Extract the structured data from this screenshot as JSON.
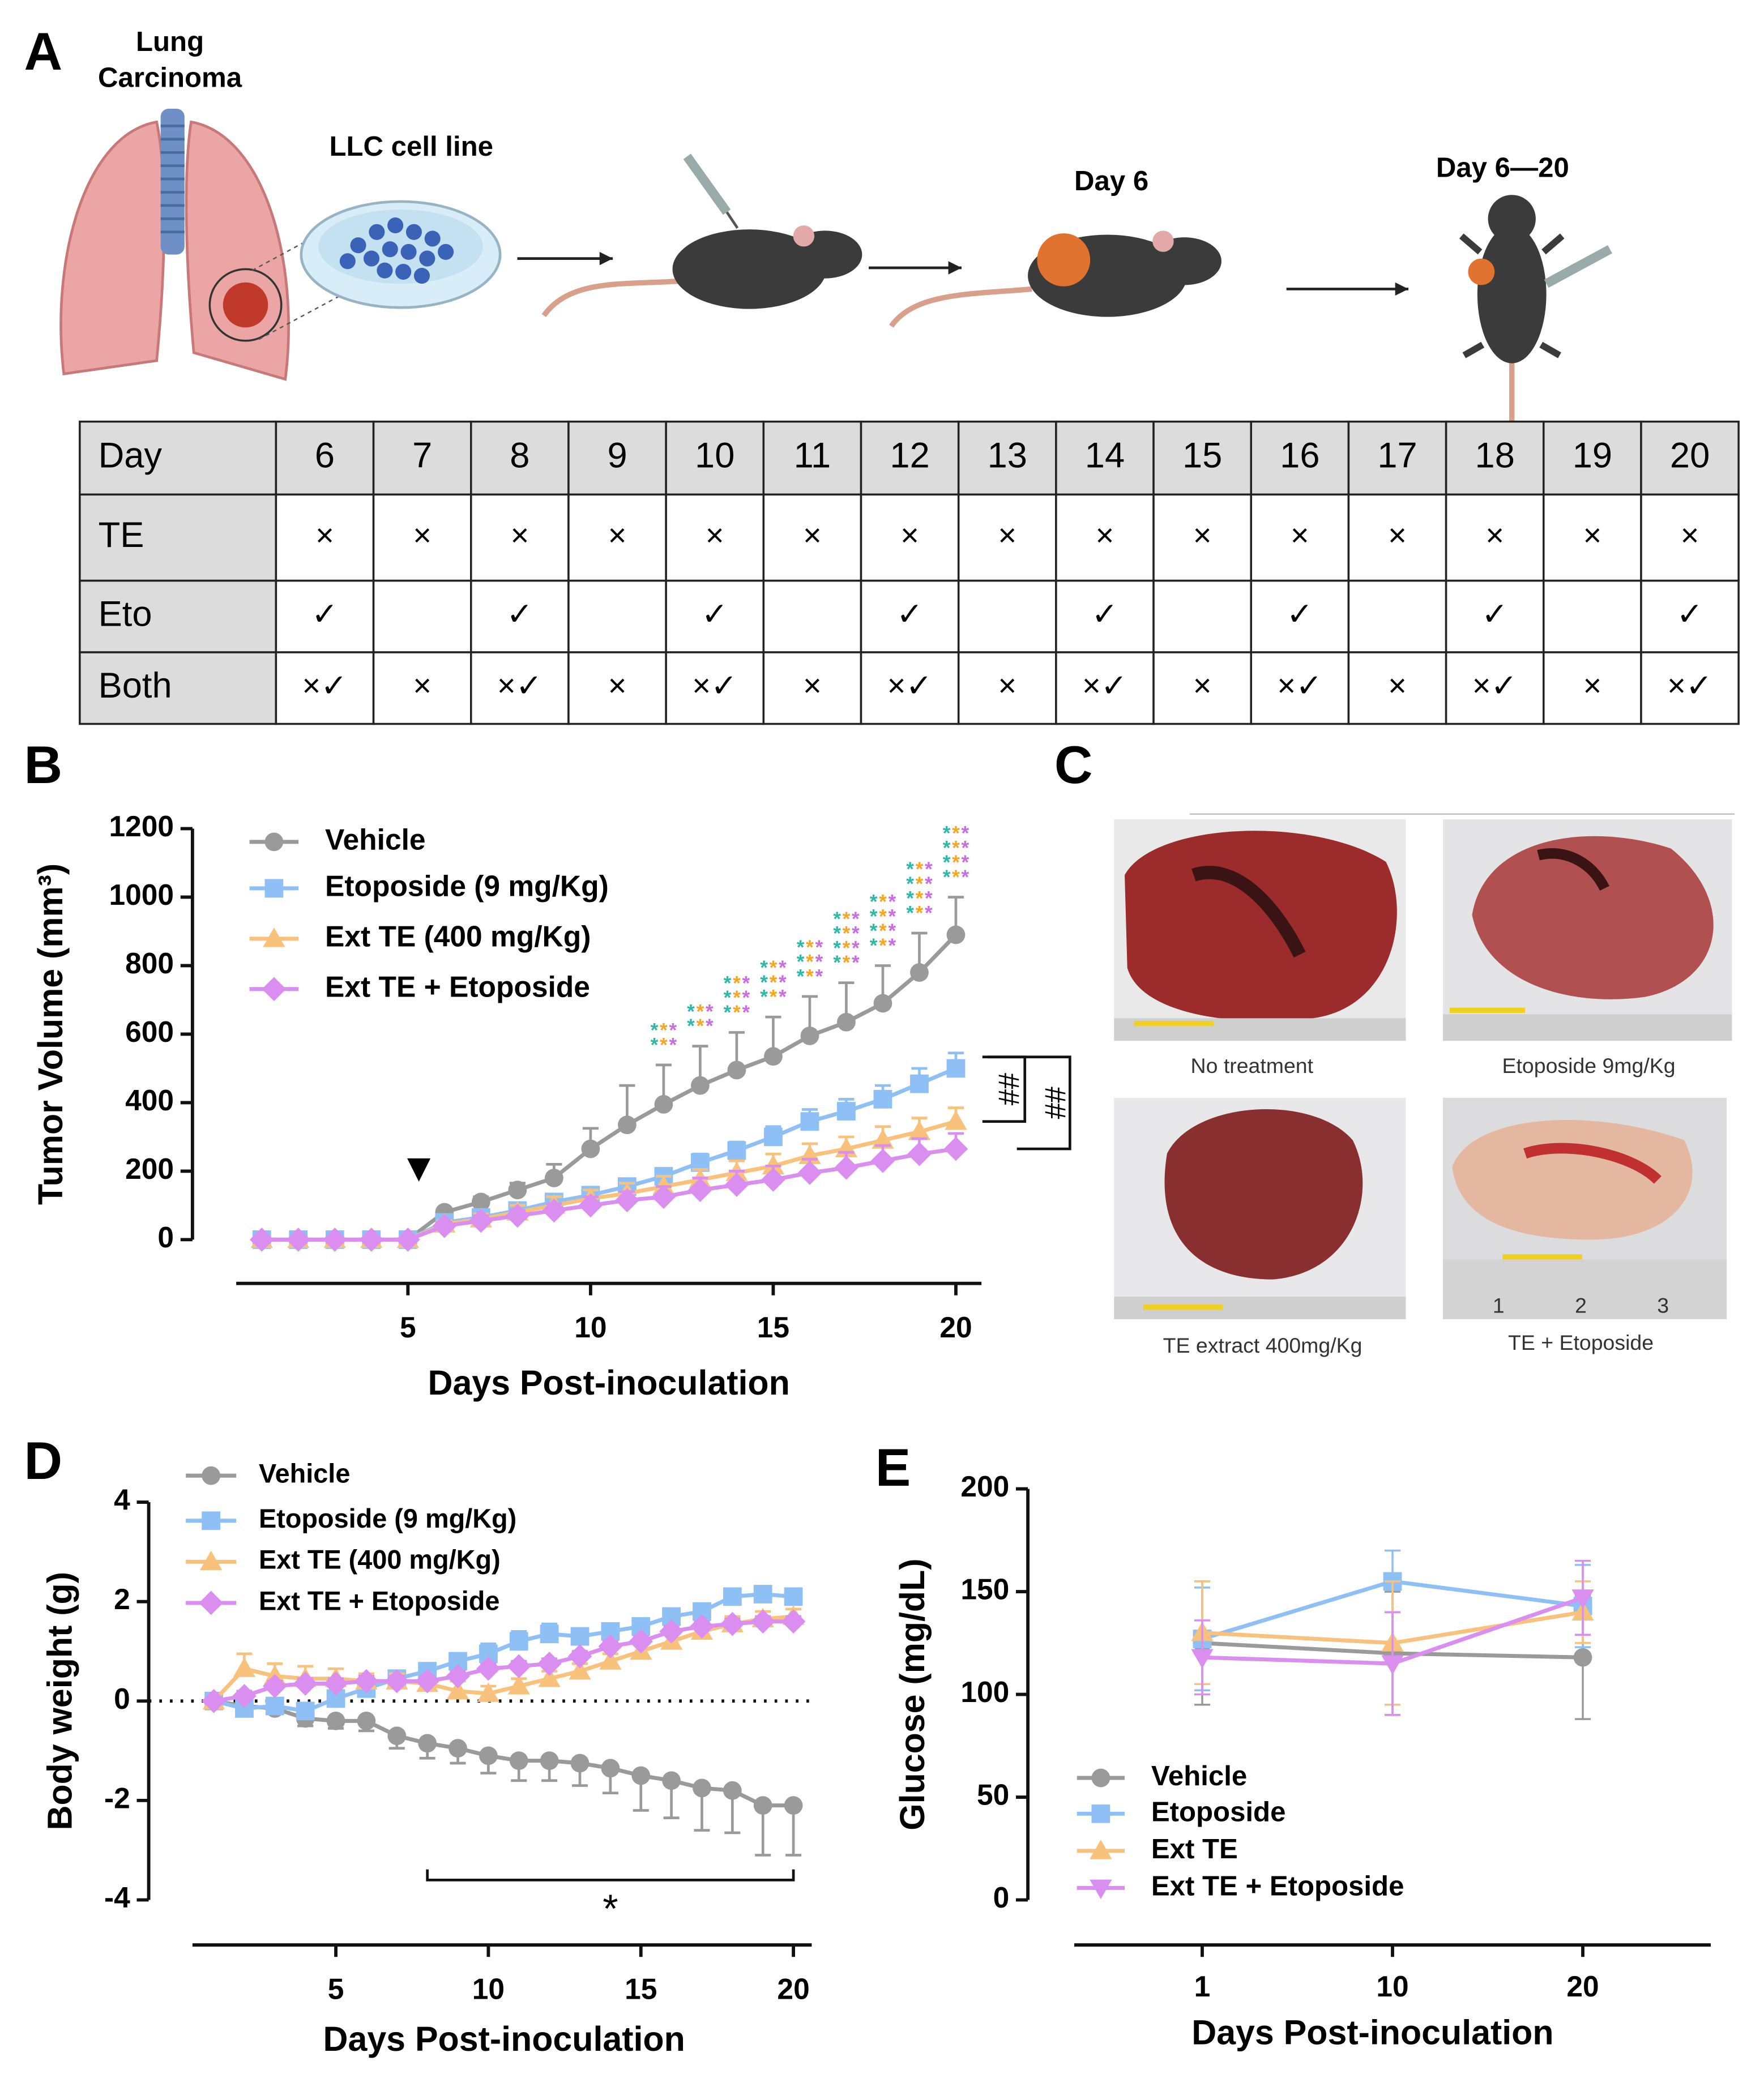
{
  "panel_a": {
    "label": "A",
    "lung_label": [
      "Lung",
      "Carcinoma"
    ],
    "cell_label": "LLC cell line",
    "day6": "Day 6",
    "day_range": "Day 6—20",
    "table": {
      "rows": [
        [
          "Day",
          "6",
          "7",
          "8",
          "9",
          "10",
          "11",
          "12",
          "13",
          "14",
          "15",
          "16",
          "17",
          "18",
          "19",
          "20"
        ],
        [
          "TE",
          "×",
          "×",
          "×",
          "×",
          "×",
          "×",
          "×",
          "×",
          "×",
          "×",
          "×",
          "×",
          "×",
          "×",
          "×"
        ],
        [
          "Eto",
          "✓",
          null,
          "✓",
          null,
          "✓",
          null,
          "✓",
          null,
          "✓",
          null,
          "✓",
          null,
          "✓",
          null,
          "✓"
        ],
        [
          "Both",
          "×✓",
          "×",
          "×✓",
          "×",
          "×✓",
          "×",
          "×✓",
          "×",
          "×✓",
          "×",
          "×✓",
          "×",
          "×✓",
          "×",
          "×✓"
        ]
      ]
    }
  },
  "panel_c": {
    "label": "C",
    "captions": [
      "No treatment",
      "Etoposide 9mg/Kg",
      "TE extract 400mg/Kg",
      "TE + Etoposide"
    ],
    "ruler_labels": [
      "1",
      "2",
      "3"
    ]
  },
  "chart_data": [
    {
      "panel": "B",
      "type": "line",
      "x_label": "Days Post-inoculation",
      "y_label": "Tumor Volume (mm³)",
      "x": [
        1,
        2,
        3,
        4,
        5,
        6,
        7,
        8,
        9,
        10,
        11,
        12,
        13,
        14,
        15,
        16,
        17,
        18,
        19,
        20
      ],
      "series": [
        {
          "name": "Vehicle",
          "color": "#9a9a9a",
          "marker": "circle",
          "error_direction": "up",
          "values": [
            0,
            0,
            0,
            0,
            0,
            80,
            110,
            145,
            180,
            265,
            335,
            395,
            450,
            495,
            535,
            595,
            635,
            690,
            780,
            890
          ],
          "errors": [
            0,
            0,
            0,
            0,
            0,
            10,
            15,
            20,
            40,
            60,
            115,
            115,
            115,
            110,
            115,
            115,
            115,
            110,
            115,
            110
          ]
        },
        {
          "name": "Etoposide (9 mg/Kg)",
          "color": "#8ec0f5",
          "marker": "square",
          "error_direction": "up",
          "values": [
            0,
            0,
            0,
            0,
            0,
            50,
            65,
            85,
            110,
            130,
            155,
            185,
            225,
            260,
            300,
            345,
            375,
            410,
            455,
            500
          ],
          "errors": [
            0,
            0,
            0,
            0,
            0,
            10,
            10,
            15,
            15,
            15,
            20,
            20,
            25,
            25,
            30,
            35,
            35,
            40,
            45,
            45
          ]
        },
        {
          "name": "Ext TE (400 mg/Kg)",
          "color": "#f8c27c",
          "marker": "triangle",
          "error_direction": "up",
          "values": [
            0,
            0,
            0,
            0,
            0,
            45,
            60,
            80,
            100,
            120,
            135,
            155,
            175,
            195,
            215,
            245,
            265,
            290,
            315,
            345
          ],
          "errors": [
            0,
            0,
            0,
            0,
            0,
            10,
            15,
            20,
            25,
            25,
            30,
            30,
            30,
            35,
            35,
            35,
            35,
            40,
            40,
            40
          ]
        },
        {
          "name": "Ext TE + Etoposide",
          "color": "#d98ef0",
          "marker": "diamond",
          "error_direction": "up",
          "values": [
            0,
            0,
            0,
            0,
            0,
            40,
            55,
            70,
            85,
            100,
            115,
            125,
            145,
            160,
            175,
            195,
            210,
            230,
            250,
            265
          ],
          "errors": [
            0,
            0,
            0,
            0,
            0,
            10,
            15,
            15,
            20,
            25,
            25,
            30,
            35,
            40,
            40,
            40,
            45,
            45,
            45,
            45
          ]
        }
      ],
      "xlim": [
        0.3,
        20.7
      ],
      "xticks": [
        5,
        10,
        15,
        20
      ],
      "ylim": [
        0,
        1200
      ],
      "yticks": [
        0,
        200,
        400,
        600,
        800,
        1000,
        1200
      ],
      "arrow": "▼",
      "arrow_day": 5.3,
      "sig_symbol": "*",
      "sig_colors": [
        "#2fb7a8",
        "#f5a623",
        "#c86ee0"
      ],
      "sig_days": [
        12,
        13,
        14,
        15,
        16,
        17,
        18,
        19,
        20
      ],
      "sig_rows": [
        2,
        2,
        3,
        3,
        3,
        4,
        4,
        4,
        4
      ],
      "compare_label": "##"
    },
    {
      "panel": "D",
      "type": "line",
      "x_label": "Days Post-inoculation",
      "y_label": "Body weight (g)",
      "x": [
        1,
        2,
        3,
        4,
        5,
        6,
        7,
        8,
        9,
        10,
        11,
        12,
        13,
        14,
        15,
        16,
        17,
        18,
        19,
        20
      ],
      "series": [
        {
          "name": "Vehicle",
          "color": "#9a9a9a",
          "marker": "circle",
          "error_direction": "down",
          "values": [
            0,
            -0.1,
            -0.15,
            -0.35,
            -0.4,
            -0.4,
            -0.7,
            -0.85,
            -0.95,
            -1.1,
            -1.2,
            -1.2,
            -1.25,
            -1.35,
            -1.5,
            -1.6,
            -1.75,
            -1.8,
            -2.1,
            -2.1
          ],
          "errors": [
            0,
            0.1,
            0.1,
            0.15,
            0.15,
            0.2,
            0.25,
            0.3,
            0.3,
            0.35,
            0.4,
            0.4,
            0.45,
            0.5,
            0.7,
            0.75,
            0.85,
            0.85,
            1.0,
            1.0
          ]
        },
        {
          "name": "Etoposide (9 mg/Kg)",
          "color": "#8ec0f5",
          "marker": "square",
          "error_direction": "up",
          "values": [
            0,
            -0.15,
            -0.1,
            -0.2,
            0.05,
            0.25,
            0.45,
            0.6,
            0.8,
            0.95,
            1.2,
            1.35,
            1.3,
            1.4,
            1.5,
            1.7,
            1.8,
            2.1,
            2.15,
            2.1
          ],
          "errors": [
            0,
            0.05,
            0.1,
            0.1,
            0.1,
            0.1,
            0.1,
            0.15,
            0.15,
            0.2,
            0.2,
            0.2,
            0.15,
            0.15,
            0.1,
            0.15,
            0.15,
            0.15,
            0.15,
            0.15
          ]
        },
        {
          "name": "Ext TE (400 mg/Kg)",
          "color": "#f8c27c",
          "marker": "triangle",
          "error_direction": "up",
          "values": [
            0,
            0.65,
            0.5,
            0.45,
            0.45,
            0.4,
            0.4,
            0.35,
            0.2,
            0.15,
            0.3,
            0.45,
            0.6,
            0.8,
            1.0,
            1.2,
            1.4,
            1.55,
            1.65,
            1.7
          ],
          "errors": [
            0,
            0.3,
            0.25,
            0.25,
            0.2,
            0.15,
            0.15,
            0.15,
            0.2,
            0.15,
            0.15,
            0.15,
            0.15,
            0.15,
            0.15,
            0.15,
            0.15,
            0.15,
            0.15,
            0.15
          ]
        },
        {
          "name": "Ext TE + Etoposide",
          "color": "#d98ef0",
          "marker": "diamond",
          "error_direction": "up",
          "values": [
            0,
            0.1,
            0.3,
            0.35,
            0.35,
            0.4,
            0.4,
            0.4,
            0.5,
            0.65,
            0.7,
            0.75,
            0.9,
            1.1,
            1.2,
            1.4,
            1.5,
            1.55,
            1.6,
            1.6
          ],
          "errors": [
            0,
            0.1,
            0.1,
            0.1,
            0.1,
            0.1,
            0.1,
            0.1,
            0.1,
            0.1,
            0.1,
            0.1,
            0.1,
            0.1,
            0.1,
            0.1,
            0.1,
            0.1,
            0.1,
            0.1
          ]
        }
      ],
      "xlim": [
        0.3,
        20.6
      ],
      "xticks": [
        5,
        10,
        15,
        20
      ],
      "ylim": [
        -4,
        4
      ],
      "yticks": [
        -4,
        -2,
        0,
        2,
        4
      ],
      "zero_line": true,
      "bracket_days": [
        8,
        20
      ],
      "bracket_label": "*"
    },
    {
      "panel": "E",
      "type": "line",
      "x_label": "Days Post-inoculation",
      "y_label": "Glucose (mg/dL)",
      "categories": [
        "1",
        "10",
        "20"
      ],
      "series": [
        {
          "name": "Vehicle",
          "color": "#9a9a9a",
          "marker": "circle",
          "error_direction": "both",
          "values": [
            125,
            120,
            118
          ],
          "errors": [
            30,
            30,
            30
          ]
        },
        {
          "name": "Etoposide",
          "color": "#8ec0f5",
          "marker": "square",
          "error_direction": "both",
          "values": [
            127,
            155,
            143
          ],
          "errors": [
            25,
            15,
            20
          ]
        },
        {
          "name": "Ext TE",
          "color": "#f8c27c",
          "marker": "triangle",
          "error_direction": "both",
          "values": [
            130,
            125,
            140
          ],
          "errors": [
            25,
            30,
            15
          ]
        },
        {
          "name": "Ext TE + Etoposide",
          "color": "#d98ef0",
          "marker": "triangle-down",
          "error_direction": "both",
          "values": [
            118,
            115,
            147
          ],
          "errors": [
            18,
            25,
            18
          ]
        }
      ],
      "ylim": [
        0,
        200
      ],
      "yticks": [
        0,
        50,
        100,
        150,
        200
      ]
    }
  ]
}
